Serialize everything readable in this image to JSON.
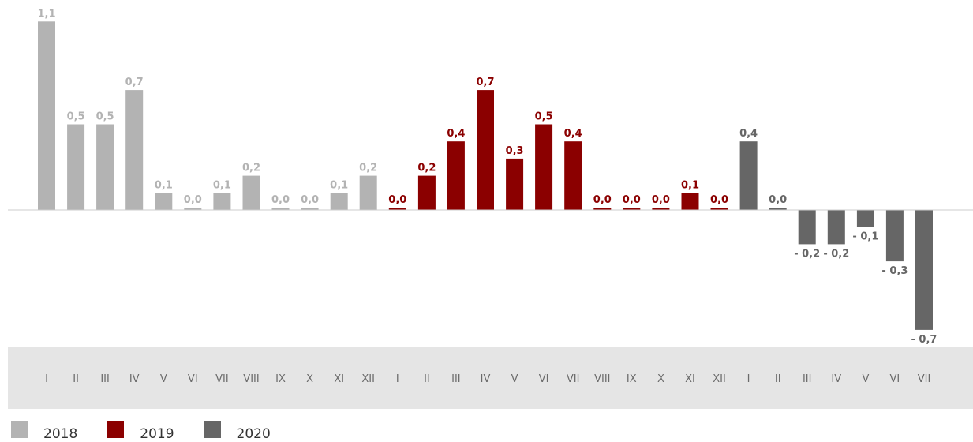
{
  "chart_data": {
    "type": "bar",
    "categories": [
      "I",
      "II",
      "III",
      "IV",
      "V",
      "VI",
      "VII",
      "VIII",
      "IX",
      "X",
      "XI",
      "XII",
      "I",
      "II",
      "III",
      "IV",
      "V",
      "VI",
      "VII",
      "VIII",
      "IX",
      "X",
      "XI",
      "XII",
      "I",
      "II",
      "III",
      "IV",
      "V",
      "VI",
      "VII"
    ],
    "values": [
      1.1,
      0.5,
      0.5,
      0.7,
      0.1,
      0.0,
      0.1,
      0.2,
      0.0,
      0.0,
      0.1,
      0.2,
      0.0,
      0.2,
      0.4,
      0.7,
      0.3,
      0.5,
      0.4,
      0.0,
      0.0,
      0.0,
      0.1,
      0.0,
      0.4,
      0.0,
      -0.2,
      -0.2,
      -0.1,
      -0.3,
      -0.7
    ],
    "value_labels": [
      "1,1",
      "0,5",
      "0,5",
      "0,7",
      "0,1",
      "0,0",
      "0,1",
      "0,2",
      "0,0",
      "0,0",
      "0,1",
      "0,2",
      "0,0",
      "0,2",
      "0,4",
      "0,7",
      "0,3",
      "0,5",
      "0,4",
      "0,0",
      "0,0",
      "0,0",
      "0,1",
      "0,0",
      "0,4",
      "0,0",
      "- 0,2",
      "- 0,2",
      "- 0,1",
      "- 0,3",
      "- 0,7"
    ],
    "bar_series": [
      "2018",
      "2018",
      "2018",
      "2018",
      "2018",
      "2018",
      "2018",
      "2018",
      "2018",
      "2018",
      "2018",
      "2018",
      "2019",
      "2019",
      "2019",
      "2019",
      "2019",
      "2019",
      "2019",
      "2019",
      "2019",
      "2019",
      "2019",
      "2019",
      "2020",
      "2020",
      "2020",
      "2020",
      "2020",
      "2020",
      "2020"
    ],
    "series": [
      {
        "name": "2018",
        "color": "#b3b3b3"
      },
      {
        "name": "2019",
        "color": "#8b0000"
      },
      {
        "name": "2020",
        "color": "#666666"
      }
    ],
    "label_colors": {
      "2018": "#b3b3b3",
      "2019": "#8b0000",
      "2020": "#666666"
    },
    "ylim": [
      -0.8,
      1.1
    ],
    "grid": false,
    "legend_position": "bottom-left",
    "baseline_color": "#cccccc",
    "axis_band_color": "#e5e5e5"
  }
}
